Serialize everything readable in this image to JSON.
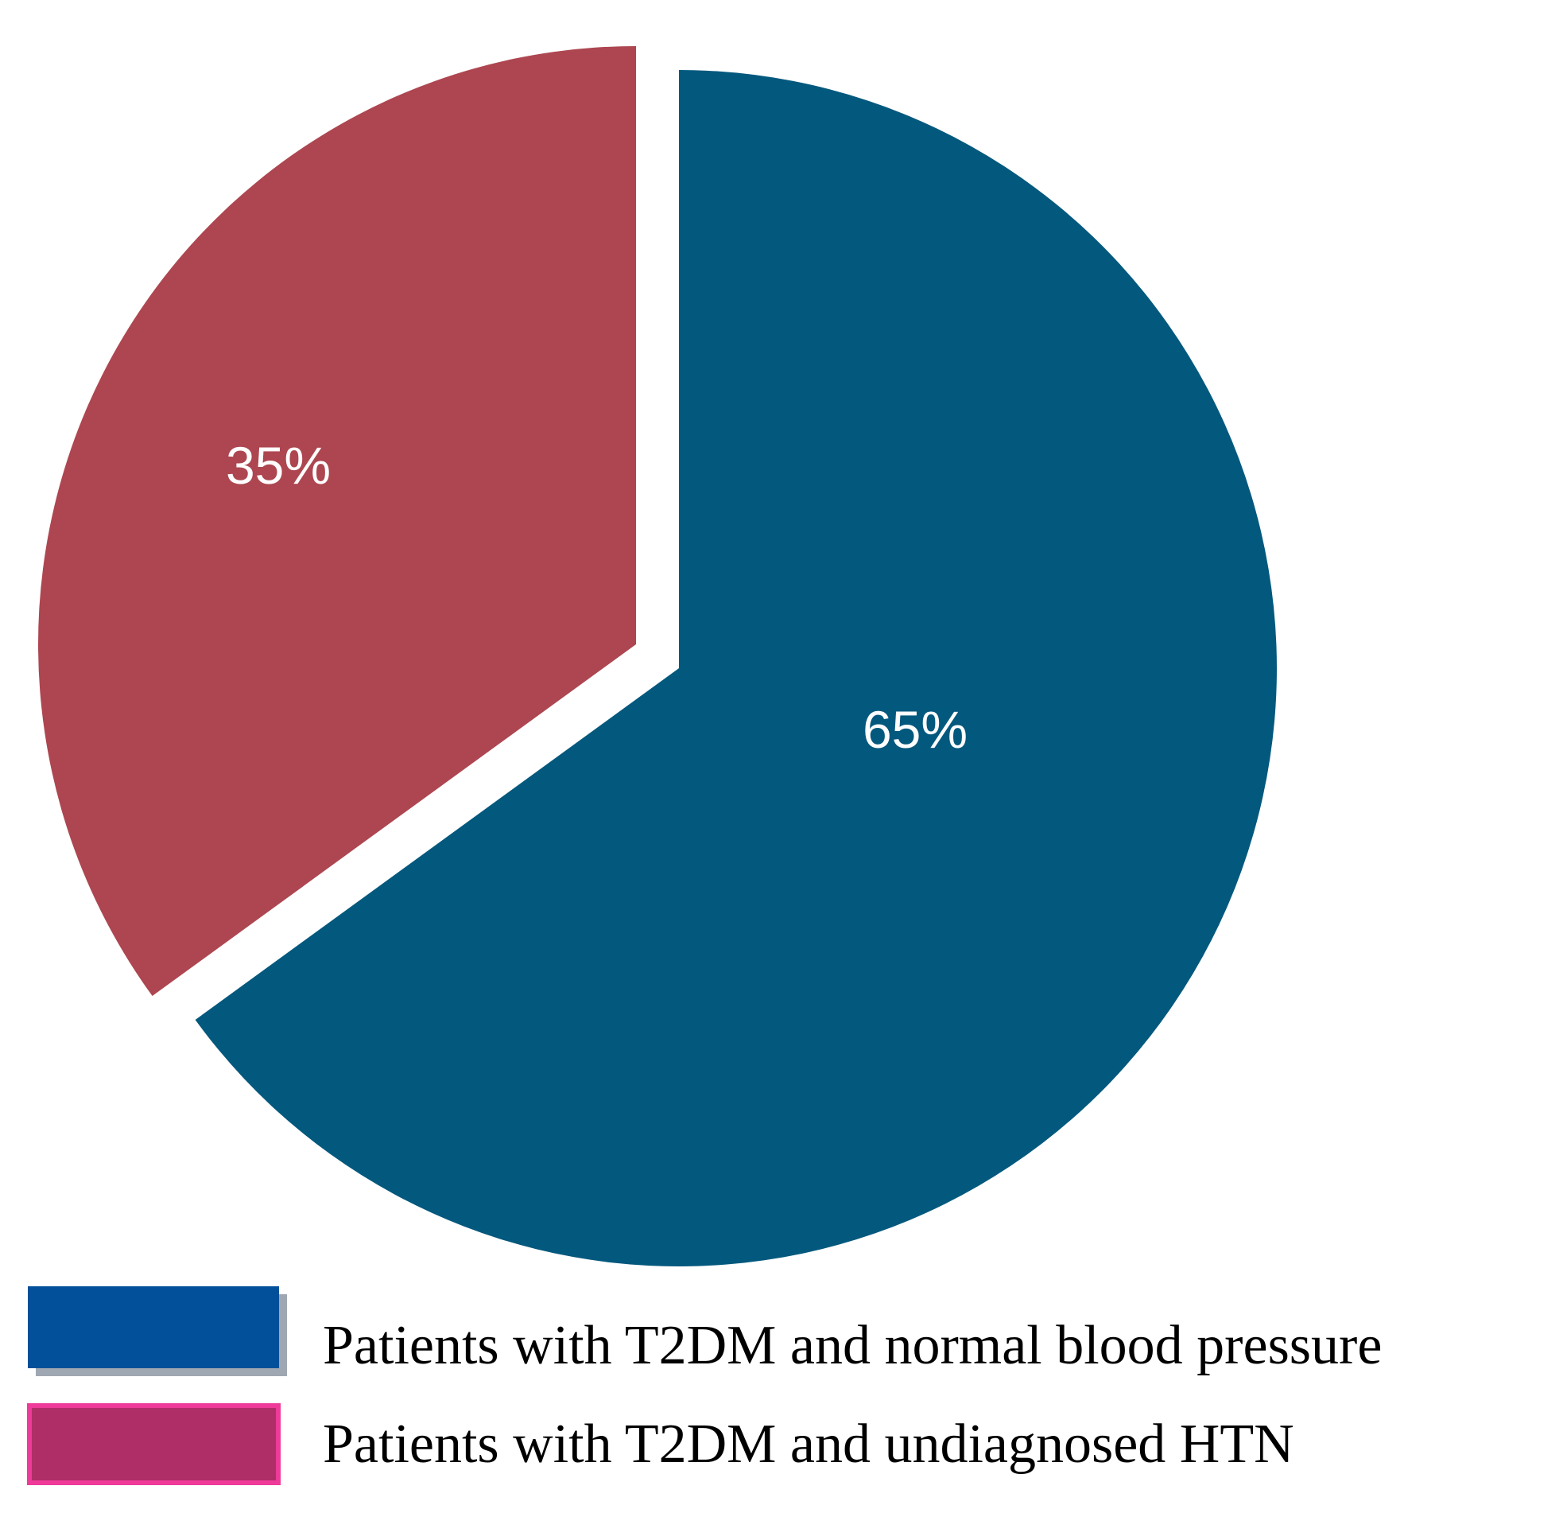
{
  "chart_data": {
    "type": "pie",
    "title": "",
    "exploded": true,
    "start": "12 o'clock, clockwise",
    "series": [
      {
        "name": "Patients with T2DM and normal blood pressure",
        "value": 65,
        "label": "65%",
        "color": "#03587d",
        "legend_color": "#02509a",
        "legend_shadow": "#9fa7b2"
      },
      {
        "name": "Patients with T2DM and undiagnosed HTN",
        "value": 35,
        "label": "35%",
        "color": "#ad4650",
        "legend_color": "#af2e67",
        "legend_border": "#ee3a99"
      }
    ]
  }
}
